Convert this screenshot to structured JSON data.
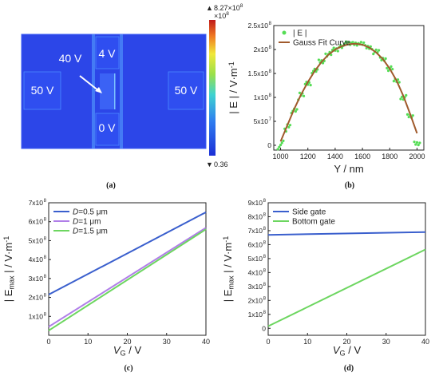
{
  "panel_a": {
    "caption": "(a)",
    "labels": {
      "top": "4 V",
      "bottom": "0 V",
      "left": "50 V",
      "right": "50 V",
      "side": "40 V"
    },
    "colorbar": {
      "max_mark": "▲",
      "max": "8.27×10",
      "max_exp": "8",
      "max_sub": "×10",
      "max_sub_exp": "8",
      "min_mark": "▼",
      "min": "0.36"
    }
  },
  "chart_data": [
    {
      "id": "b",
      "type": "scatter",
      "caption": "(b)",
      "title": "",
      "xlabel": "Y / nm",
      "ylabel": "| E | / V·m",
      "ylabel_sup": "-1",
      "xlim": [
        950,
        2050
      ],
      "ylim": [
        -10000000,
        250000000
      ],
      "xticks": [
        1000,
        1200,
        1400,
        1600,
        1800,
        2000
      ],
      "yticks": [
        {
          "v": 0,
          "m": "0",
          "e": ""
        },
        {
          "v": 50000000,
          "m": "5x10",
          "e": "7"
        },
        {
          "v": 100000000,
          "m": "1x10",
          "e": "8"
        },
        {
          "v": 150000000,
          "m": "1.5x10",
          "e": "8"
        },
        {
          "v": 200000000,
          "m": "2x10",
          "e": "8"
        },
        {
          "v": 250000000,
          "m": "2.5x10",
          "e": "8"
        }
      ],
      "legend": [
        "| E |",
        "Gauss Fit Curve"
      ],
      "legend_pos": "top-left",
      "series": [
        {
          "name": "| E |",
          "kind": "points",
          "color": "#55dd55",
          "x": [
            1000,
            1050,
            1100,
            1150,
            1200,
            1250,
            1300,
            1350,
            1400,
            1450,
            1500,
            1550,
            1600,
            1650,
            1700,
            1750,
            1800,
            1850,
            1900,
            1950,
            2000
          ],
          "y": [
            5000000,
            40000000,
            75000000,
            105000000,
            130000000,
            155000000,
            175000000,
            190000000,
            200000000,
            208000000,
            212000000,
            213000000,
            211000000,
            205000000,
            195000000,
            180000000,
            160000000,
            135000000,
            100000000,
            60000000,
            5000000
          ]
        },
        {
          "name": "Gauss Fit Curve",
          "kind": "line",
          "color": "#a05a2c",
          "x": [
            1000,
            1050,
            1100,
            1150,
            1200,
            1250,
            1300,
            1350,
            1400,
            1450,
            1500,
            1550,
            1600,
            1650,
            1700,
            1750,
            1800,
            1850,
            1900,
            1950,
            2000
          ],
          "y": [
            8000000,
            42000000,
            76000000,
            106000000,
            132000000,
            155000000,
            174000000,
            189000000,
            200000000,
            207000000,
            211000000,
            212000000,
            210000000,
            204000000,
            194000000,
            180000000,
            160000000,
            135000000,
            103000000,
            65000000,
            25000000
          ]
        }
      ]
    },
    {
      "id": "c",
      "type": "line",
      "caption": "(c)",
      "title": "",
      "xlabel": "V",
      "xlabel_sub": "G",
      "xlabel_unit": " / V",
      "ylabel": "| E",
      "ylabel_sub": "max",
      "ylabel_unit": " | / V·m",
      "ylabel_sup": "-1",
      "xlim": [
        0,
        40
      ],
      "ylim": [
        0,
        700000000
      ],
      "xticks": [
        0,
        10,
        20,
        30,
        40
      ],
      "yticks": [
        {
          "v": 100000000,
          "m": "1x10",
          "e": "8"
        },
        {
          "v": 200000000,
          "m": "2x10",
          "e": "8"
        },
        {
          "v": 300000000,
          "m": "3x10",
          "e": "8"
        },
        {
          "v": 400000000,
          "m": "4x10",
          "e": "8"
        },
        {
          "v": 500000000,
          "m": "5x10",
          "e": "8"
        },
        {
          "v": 600000000,
          "m": "6x10",
          "e": "8"
        },
        {
          "v": 700000000,
          "m": "7x10",
          "e": "8"
        }
      ],
      "legend_pos": "top-left",
      "series": [
        {
          "name": "D=0.5 μm",
          "label_pre": "D",
          "label_post": "=0.5 μm",
          "color": "#3a5fcd",
          "x": [
            0,
            40
          ],
          "y": [
            215000000,
            650000000
          ]
        },
        {
          "name": "D=1 μm",
          "label_pre": "D",
          "label_post": "=1 μm",
          "color": "#b07ee8",
          "x": [
            0,
            40
          ],
          "y": [
            45000000,
            568000000
          ]
        },
        {
          "name": "D=1.5 μm",
          "label_pre": "D",
          "label_post": "=1.5 μm",
          "color": "#6dd660",
          "x": [
            0,
            40
          ],
          "y": [
            25000000,
            560000000
          ]
        }
      ]
    },
    {
      "id": "d",
      "type": "line",
      "caption": "(d)",
      "title": "",
      "xlabel": "V",
      "xlabel_sub": "G",
      "xlabel_unit": " / V",
      "ylabel": "| E",
      "ylabel_sub": "max",
      "ylabel_unit": " | / V·m",
      "ylabel_sup": "-1",
      "xlim": [
        0,
        40
      ],
      "ylim": [
        -50000000,
        900000000
      ],
      "xticks": [
        0,
        10,
        20,
        30,
        40
      ],
      "yticks": [
        {
          "v": 0,
          "m": "0",
          "e": ""
        },
        {
          "v": 100000000,
          "m": "1x10",
          "e": "8"
        },
        {
          "v": 200000000,
          "m": "2x10",
          "e": "8"
        },
        {
          "v": 300000000,
          "m": "3x10",
          "e": "8"
        },
        {
          "v": 400000000,
          "m": "4x10",
          "e": "8"
        },
        {
          "v": 500000000,
          "m": "5x10",
          "e": "8"
        },
        {
          "v": 600000000,
          "m": "6x10",
          "e": "8"
        },
        {
          "v": 700000000,
          "m": "7x10",
          "e": "8"
        },
        {
          "v": 800000000,
          "m": "8x10",
          "e": "8"
        },
        {
          "v": 900000000,
          "m": "9x10",
          "e": "8"
        }
      ],
      "legend_pos": "top-left",
      "series": [
        {
          "name": "Side gate",
          "label_pre": "",
          "label_post": "Side gate",
          "color": "#3a5fcd",
          "x": [
            0,
            40
          ],
          "y": [
            670000000,
            690000000
          ]
        },
        {
          "name": "Bottom gate",
          "label_pre": "",
          "label_post": "Bottom gate",
          "color": "#6dd660",
          "x": [
            0,
            40
          ],
          "y": [
            15000000,
            565000000
          ]
        }
      ]
    }
  ]
}
